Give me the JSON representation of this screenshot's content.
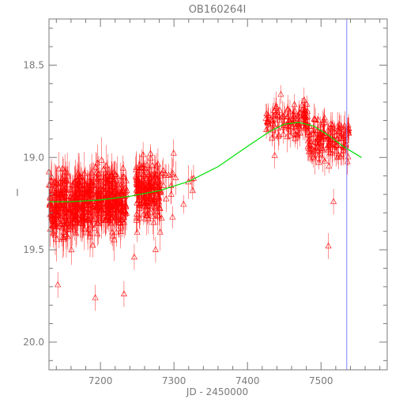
{
  "chart_data": {
    "type": "scatter",
    "title": "OB160264I",
    "xlabel": "JD - 2450000",
    "ylabel": "I",
    "xlim": [
      7130,
      7590
    ],
    "ylim": [
      20.15,
      18.25
    ],
    "y_inverted": true,
    "xticks": [
      7200,
      7300,
      7400,
      7500
    ],
    "xtick_labels": [
      "7200",
      "7300",
      "7400",
      "7500"
    ],
    "yticks": [
      18.5,
      19.0,
      19.5,
      20.0
    ],
    "ytick_labels": [
      "18.5",
      "19.0",
      "19.5",
      "20.0"
    ],
    "grid": false,
    "legend": "none",
    "colors": {
      "points": "#ff0000",
      "model": "#00e000",
      "marker_line": "#8080ff",
      "axes": "#7a7a7a"
    },
    "marker": "triangle-up",
    "error_bars": true,
    "vertical_line_x": 7535,
    "model_curve": {
      "x": [
        7130,
        7160,
        7200,
        7240,
        7280,
        7320,
        7360,
        7400,
        7430,
        7450,
        7470,
        7490,
        7510,
        7530,
        7555
      ],
      "y": [
        19.24,
        19.24,
        19.23,
        19.21,
        19.18,
        19.13,
        19.05,
        18.94,
        18.86,
        18.82,
        18.81,
        18.83,
        18.88,
        18.94,
        19.0
      ]
    },
    "segments": [
      {
        "x_from": 7130,
        "x_to": 7165,
        "count": 170,
        "mean": 19.26,
        "spread": 0.13,
        "err": 0.09
      },
      {
        "x_from": 7165,
        "x_to": 7200,
        "count": 190,
        "mean": 19.24,
        "spread": 0.12,
        "err": 0.09
      },
      {
        "x_from": 7200,
        "x_to": 7236,
        "count": 190,
        "mean": 19.23,
        "spread": 0.12,
        "err": 0.09
      },
      {
        "x_from": 7248,
        "x_to": 7282,
        "count": 170,
        "mean": 19.18,
        "spread": 0.11,
        "err": 0.08
      },
      {
        "x_from": 7282,
        "x_to": 7335,
        "count": 20,
        "mean": 19.16,
        "spread": 0.13,
        "err": 0.08
      },
      {
        "x_from": 7425,
        "x_to": 7482,
        "count": 110,
        "mean": 18.8,
        "spread": 0.07,
        "err": 0.06
      },
      {
        "x_from": 7482,
        "x_to": 7538,
        "count": 140,
        "mean": 18.9,
        "spread": 0.08,
        "err": 0.06
      }
    ],
    "outliers": [
      {
        "x": 7142,
        "y": 19.69
      },
      {
        "x": 7193,
        "y": 19.76
      },
      {
        "x": 7232,
        "y": 19.74
      },
      {
        "x": 7246,
        "y": 19.54
      },
      {
        "x": 7275,
        "y": 19.5
      },
      {
        "x": 7510,
        "y": 19.48
      },
      {
        "x": 7517,
        "y": 19.24
      },
      {
        "x": 7437,
        "y": 18.99
      }
    ]
  }
}
